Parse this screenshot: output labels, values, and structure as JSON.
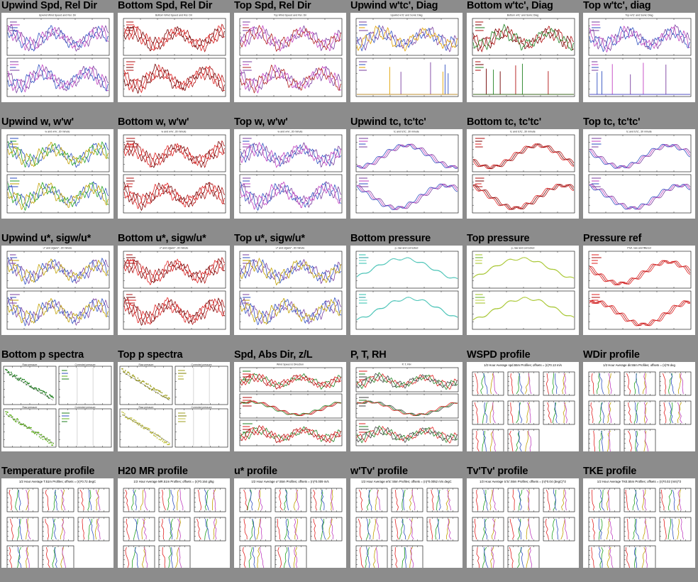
{
  "page": {
    "background": "#8c8c8c"
  },
  "cells": [
    {
      "title": "Upwind Spd, Rel Dir",
      "kind": "ts2",
      "caption": "Upwind Wind Speed and Rel. Dir",
      "colors": [
        "#7a3fa0",
        "#c040c0",
        "#3050c0"
      ]
    },
    {
      "title": "Bottom Spd, Rel Dir",
      "kind": "ts2",
      "caption": "Bottom Wind Speed and Rel. Dir",
      "colors": [
        "#b01010",
        "#e02020",
        "#700000"
      ]
    },
    {
      "title": "Top Spd, Rel Dir",
      "kind": "ts2",
      "caption": "Top Wind Speed and Rel. Dir",
      "colors": [
        "#7a3fa0",
        "#c040c0",
        "#b02020"
      ]
    },
    {
      "title": "Upwind w'tc', Diag",
      "kind": "diag",
      "caption": "Upwind w'tc' and Sonic Diag",
      "colors": [
        "#7a3fa0",
        "#3050c0",
        "#e0a000"
      ]
    },
    {
      "title": "Bottom w'tc', Diag",
      "kind": "diag",
      "caption": "Bottom w'tc' and Sonic Diag",
      "colors": [
        "#b01010",
        "#700000",
        "#208020"
      ]
    },
    {
      "title": "Top w'tc', diag",
      "kind": "diag",
      "caption": "Top w'tc' and Sonic Diag",
      "colors": [
        "#7a3fa0",
        "#c040c0",
        "#3050c0"
      ]
    },
    {
      "title": "Upwind w, w'w'",
      "kind": "ts2",
      "caption": "w and w'w', 30 minute",
      "colors": [
        "#3050c0",
        "#20a020",
        "#c0a000"
      ]
    },
    {
      "title": "Bottom w, w'w'",
      "kind": "ts2",
      "caption": "w and w'w', 30 minute",
      "colors": [
        "#b01010",
        "#700000",
        "#e02020"
      ]
    },
    {
      "title": "Top w, w'w'",
      "kind": "ts2",
      "caption": "w and w'w', 30 minute",
      "colors": [
        "#7a3fa0",
        "#3050c0",
        "#c040c0"
      ]
    },
    {
      "title": "Upwind tc, tc'tc'",
      "kind": "ts2",
      "caption": "tc and tc'tc', 30 minute",
      "colors": [
        "#7a3fa0",
        "#c040c0",
        "#3050c0"
      ]
    },
    {
      "title": "Bottom tc, tc'tc'",
      "kind": "ts2",
      "caption": "tc and tc'tc', 30 minute",
      "colors": [
        "#b01010",
        "#700000",
        "#e02020"
      ]
    },
    {
      "title": "Top tc, tc'tc'",
      "kind": "ts2",
      "caption": "tc and tc'tc', 30 minute",
      "colors": [
        "#7a3fa0",
        "#c040c0",
        "#3050c0"
      ]
    },
    {
      "title": "Upwind u*, sigw/u*",
      "kind": "ts2",
      "caption": "u* and sigw/u*, 30 minute",
      "colors": [
        "#7a3fa0",
        "#3050c0",
        "#c0a000"
      ]
    },
    {
      "title": "Bottom u*, sigw/u*",
      "kind": "ts2",
      "caption": "u* and sigw/u*, 30 minute",
      "colors": [
        "#b01010",
        "#700000",
        "#e02020"
      ]
    },
    {
      "title": "Top u*, sigw/u*",
      "kind": "ts2",
      "caption": "u* and sigw/u*, 30 minute",
      "colors": [
        "#7a3fa0",
        "#3050c0",
        "#c0a000"
      ]
    },
    {
      "title": "Bottom pressure",
      "kind": "ts2",
      "caption": "p, raw and corrected",
      "colors": [
        "#30c0b0",
        "#20a0a0",
        "#60d0c0"
      ]
    },
    {
      "title": "Top pressure",
      "kind": "ts2",
      "caption": "p, raw and corrected",
      "colors": [
        "#a0c020",
        "#60b020",
        "#c0d040"
      ]
    },
    {
      "title": "Pressure ref",
      "kind": "ts2",
      "caption": "Pref, raw and filtered",
      "colors": [
        "#e02020",
        "#b01010",
        "#e02020"
      ]
    },
    {
      "title": "Bottom p spectra",
      "kind": "spectra",
      "caption": "Raw pressure",
      "colors": [
        "#208020",
        "#3050c0",
        "#60b020"
      ]
    },
    {
      "title": "Top p spectra",
      "kind": "spectra",
      "caption": "Raw pressure",
      "colors": [
        "#a0a020",
        "#808000",
        "#c0c040"
      ]
    },
    {
      "title": "Spd, Abs Dir, z/L",
      "kind": "ts3",
      "caption": "Wind Speed & Direction",
      "colors": [
        "#208020",
        "#e02020",
        "#b01010"
      ]
    },
    {
      "title": "P, T, RH",
      "kind": "ts3",
      "caption": "P, T, RH",
      "colors": [
        "#e02020",
        "#208020",
        "#404040"
      ]
    },
    {
      "title": "WSPD profile",
      "kind": "profile",
      "caption": "1/2 Hour Average spd.55m Profiles; offsets = (n)*0.13 m/s",
      "colors": [
        "#e02020",
        "#20a020",
        "#3050c0",
        "#c0a000",
        "#c040c0"
      ]
    },
    {
      "title": "WDir profile",
      "kind": "profile",
      "caption": "1/2 Hour Average dir.55m Profiles; offsets = (n)*8 deg",
      "colors": [
        "#e02020",
        "#20a020",
        "#3050c0",
        "#c0a000",
        "#c040c0"
      ]
    },
    {
      "title": "Temperature profile",
      "kind": "profile",
      "caption": "1/2 Hour Average T.51m Profiles; offsets = (n)*0.72 degC",
      "colors": [
        "#e02020",
        "#20a020",
        "#3050c0",
        "#c0a000",
        "#c040c0"
      ]
    },
    {
      "title": "H20 MR profile",
      "kind": "profile",
      "caption": "1/2 Hour Average MR.51m Profiles; offsets = (n)*0.164 g/kg",
      "colors": [
        "#e02020",
        "#20a020",
        "#3050c0",
        "#c0a000",
        "#c040c0"
      ]
    },
    {
      "title": "u* profile",
      "kind": "profile",
      "caption": "1/2 Hour Average u*.55m Profiles; offsets = (n)*0.009 m/s",
      "colors": [
        "#e02020",
        "#20a020",
        "#3050c0",
        "#c0a000",
        "#c040c0"
      ]
    },
    {
      "title": "w'Tv' profile",
      "kind": "profile",
      "caption": "1/2 Hour Average w'tc'.55m Profiles; offsets = (n)*0.0052 m/s degC",
      "colors": [
        "#e02020",
        "#20a020",
        "#3050c0",
        "#c0a000",
        "#c040c0"
      ]
    },
    {
      "title": "Tv'Tv' profile",
      "kind": "profile",
      "caption": "1/2 Hour Average tc'tc'.55m Profiles; offsets = (n)*0.04 (degC)^2",
      "colors": [
        "#e02020",
        "#20a020",
        "#3050c0",
        "#c0a000",
        "#c040c0"
      ]
    },
    {
      "title": "TKE profile",
      "kind": "profile",
      "caption": "1/2 Hour Average TKE.55m Profiles; offsets = (n)*0.02 (m/s)^2",
      "colors": [
        "#e02020",
        "#20a020",
        "#3050c0",
        "#c0a000",
        "#c040c0"
      ]
    }
  ]
}
